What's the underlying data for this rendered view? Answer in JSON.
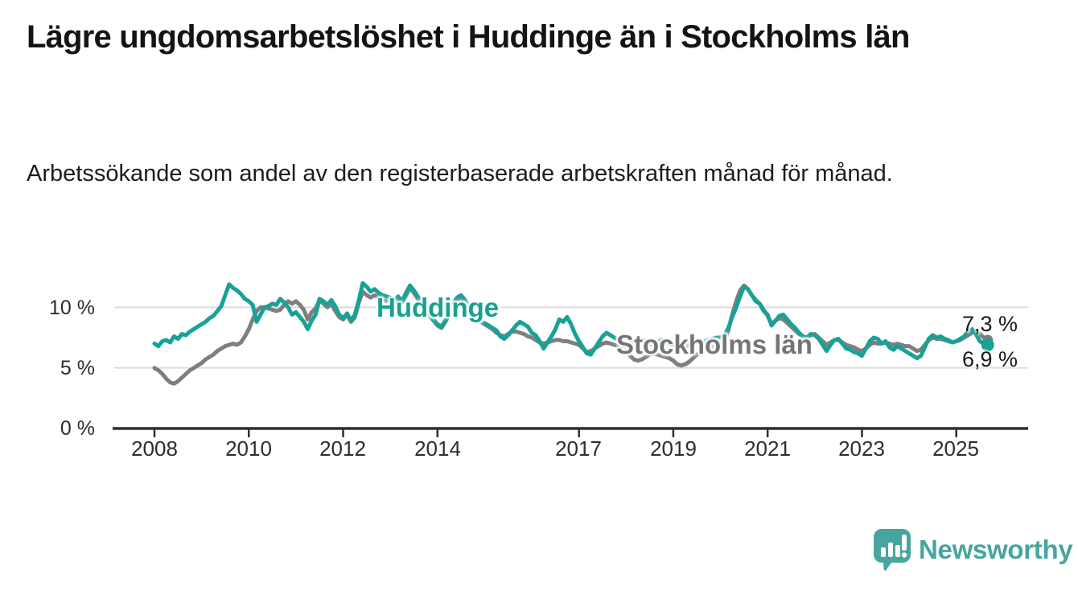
{
  "header": {
    "title": "Lägre ungdomsarbetslöshet i Huddinge än i Stockholms län",
    "subtitle": "Arbetssökande som andel av den registerbaserade arbetskraften månad för månad."
  },
  "chart_data": {
    "type": "line",
    "title": "Lägre ungdomsarbetslöshet i Huddinge än i Stockholms län",
    "subtitle": "Arbetssökande som andel av den registerbaserade arbetskraften månad för månad.",
    "unit": "%",
    "frequency": "monthly",
    "x_start": "2008-01",
    "x_end": "2025-09",
    "ylim": [
      0,
      12.5
    ],
    "grid": "horizontal",
    "y_ticks": [
      {
        "label": "0 %",
        "value": 0
      },
      {
        "label": "5 %",
        "value": 5
      },
      {
        "label": "10 %",
        "value": 10
      }
    ],
    "x_ticks": [
      {
        "label": "2008",
        "year": 2008
      },
      {
        "label": "2010",
        "year": 2010
      },
      {
        "label": "2012",
        "year": 2012
      },
      {
        "label": "2014",
        "year": 2014
      },
      {
        "label": "2017",
        "year": 2017
      },
      {
        "label": "2019",
        "year": 2019
      },
      {
        "label": "2021",
        "year": 2021
      },
      {
        "label": "2023",
        "year": 2023
      },
      {
        "label": "2025",
        "year": 2025
      }
    ],
    "series": [
      {
        "name": "Huddinge",
        "color": "#18a296",
        "end_label": "6,9 %",
        "end_value": 6.9,
        "values": [
          7.0,
          6.8,
          7.2,
          7.3,
          7.1,
          7.6,
          7.4,
          7.8,
          7.7,
          8.0,
          8.2,
          8.4,
          8.6,
          8.8,
          9.1,
          9.3,
          9.7,
          10.1,
          11.0,
          11.9,
          11.6,
          11.4,
          11.1,
          10.7,
          10.5,
          10.2,
          8.8,
          9.4,
          10.0,
          10.1,
          10.3,
          10.2,
          10.7,
          10.4,
          10.0,
          9.4,
          9.6,
          9.2,
          8.8,
          8.2,
          8.9,
          9.4,
          10.7,
          10.5,
          10.2,
          10.6,
          10.1,
          9.4,
          9.1,
          9.5,
          8.9,
          9.4,
          10.6,
          12.0,
          11.7,
          11.3,
          11.5,
          11.2,
          11.0,
          10.9,
          10.8,
          10.6,
          10.9,
          10.5,
          11.2,
          11.8,
          11.4,
          10.9,
          10.4,
          9.9,
          9.4,
          9.0,
          8.6,
          8.4,
          8.9,
          9.6,
          10.3,
          10.8,
          11.0,
          10.6,
          10.0,
          9.4,
          9.0,
          8.8,
          8.7,
          8.5,
          8.3,
          8.1,
          7.6,
          7.4,
          7.7,
          8.1,
          8.5,
          8.8,
          8.6,
          8.4,
          7.9,
          7.7,
          7.2,
          6.6,
          7.1,
          7.6,
          8.2,
          9.0,
          8.8,
          9.2,
          8.6,
          7.8,
          7.2,
          6.7,
          6.2,
          6.1,
          6.6,
          7.1,
          7.6,
          7.9,
          7.7,
          7.5,
          7.3,
          7.2,
          7.4,
          7.2,
          7.0,
          7.1,
          7.3,
          7.2,
          7.0,
          6.9,
          7.1,
          7.3,
          7.2,
          7.0,
          6.9,
          6.7,
          6.6,
          6.7,
          6.9,
          7.0,
          7.1,
          7.0,
          7.2,
          7.3,
          7.4,
          7.5,
          7.5,
          7.6,
          8.3,
          9.2,
          10.0,
          10.9,
          11.7,
          11.5,
          11.0,
          10.5,
          10.3,
          9.7,
          9.4,
          8.5,
          8.9,
          9.3,
          9.4,
          9.0,
          8.6,
          8.3,
          7.9,
          7.6,
          7.5,
          7.8,
          7.7,
          7.4,
          6.9,
          6.4,
          6.9,
          7.3,
          7.4,
          7.0,
          6.6,
          6.5,
          6.3,
          6.2,
          6.0,
          6.6,
          7.2,
          7.5,
          7.4,
          7.0,
          7.2,
          6.7,
          6.5,
          6.8,
          6.6,
          6.4,
          6.2,
          6.0,
          5.8,
          6.0,
          6.7,
          7.4,
          7.7,
          7.5,
          7.6,
          7.4,
          7.3,
          7.1,
          7.2,
          7.4,
          7.6,
          8.0,
          8.2,
          7.8,
          7.2,
          7.0,
          6.9
        ]
      },
      {
        "name": "Stockholms län",
        "color": "#7f7f7f",
        "end_label": "7,3 %",
        "end_value": 7.3,
        "values": [
          5.0,
          4.8,
          4.5,
          4.1,
          3.8,
          3.7,
          3.9,
          4.2,
          4.5,
          4.8,
          5.0,
          5.2,
          5.4,
          5.7,
          5.9,
          6.1,
          6.4,
          6.6,
          6.8,
          6.9,
          7.0,
          6.9,
          7.1,
          7.6,
          8.2,
          9.0,
          9.7,
          10.0,
          10.0,
          9.9,
          9.8,
          9.7,
          9.8,
          10.2,
          10.5,
          10.3,
          10.5,
          10.2,
          9.8,
          9.0,
          9.6,
          9.9,
          10.6,
          10.3,
          10.0,
          10.3,
          9.7,
          9.2,
          9.0,
          9.4,
          8.8,
          9.2,
          10.4,
          11.3,
          11.0,
          10.8,
          11.0,
          10.8,
          10.6,
          10.5,
          10.4,
          10.3,
          10.6,
          10.4,
          11.0,
          11.6,
          11.2,
          10.7,
          10.2,
          9.8,
          9.3,
          8.9,
          8.5,
          8.3,
          8.8,
          9.4,
          10.1,
          10.6,
          10.8,
          10.4,
          9.9,
          9.3,
          8.9,
          8.8,
          8.6,
          8.4,
          8.2,
          7.9,
          7.7,
          7.6,
          7.8,
          8.0,
          8.0,
          7.9,
          7.8,
          7.6,
          7.5,
          7.3,
          7.1,
          7.0,
          7.1,
          7.2,
          7.3,
          7.3,
          7.2,
          7.2,
          7.1,
          7.0,
          6.9,
          6.6,
          6.3,
          6.4,
          6.6,
          6.8,
          7.0,
          7.1,
          7.0,
          6.9,
          6.8,
          6.7,
          6.4,
          6.0,
          5.7,
          5.6,
          5.7,
          5.9,
          6.1,
          6.2,
          6.1,
          6.0,
          5.9,
          5.8,
          5.6,
          5.3,
          5.2,
          5.3,
          5.5,
          5.8,
          6.1,
          6.3,
          6.5,
          6.6,
          6.8,
          7.0,
          7.0,
          7.2,
          8.1,
          9.4,
          10.5,
          11.4,
          11.8,
          11.5,
          11.0,
          10.6,
          10.3,
          9.8,
          9.3,
          8.6,
          8.9,
          9.1,
          9.0,
          8.7,
          8.4,
          8.1,
          7.8,
          7.6,
          7.5,
          7.7,
          7.8,
          7.5,
          7.2,
          6.9,
          7.1,
          7.3,
          7.3,
          7.1,
          6.9,
          6.8,
          6.7,
          6.5,
          6.4,
          6.6,
          6.9,
          7.1,
          7.0,
          7.0,
          7.1,
          7.0,
          6.9,
          7.0,
          6.9,
          6.8,
          6.8,
          6.6,
          6.4,
          6.5,
          6.9,
          7.3,
          7.5,
          7.4,
          7.4,
          7.3,
          7.2,
          7.1,
          7.2,
          7.3,
          7.5,
          7.7,
          7.9,
          8.0,
          7.8,
          7.5,
          7.3
        ]
      }
    ],
    "colors": {
      "huddinge": "#18a296",
      "stockholm": "#7f7f7f",
      "grid": "#dcdcdc",
      "axis": "#2f2f2f"
    }
  },
  "footer": {
    "brand": "Newsworthy",
    "brand_color": "#47a59e"
  }
}
